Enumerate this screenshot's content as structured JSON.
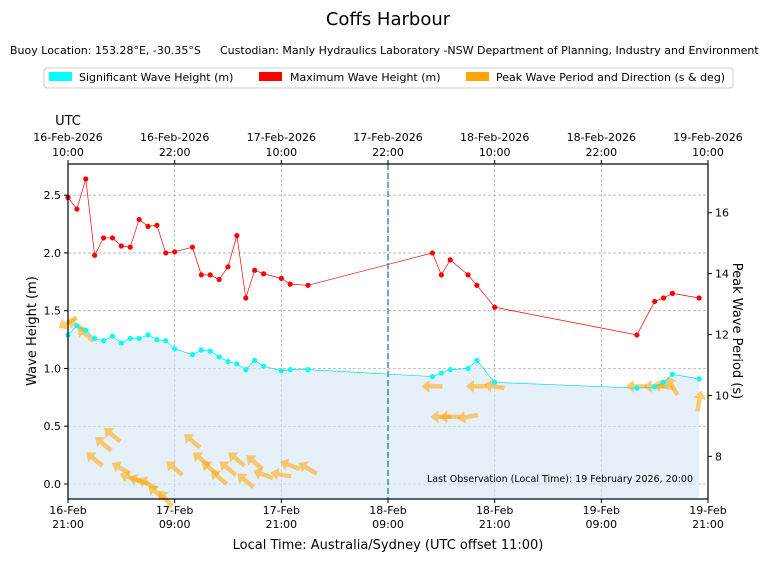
{
  "chart_data": {
    "type": "line",
    "title": "Coffs Harbour",
    "subtitle_location": "Buoy Location: 153.28°E, -30.35°S",
    "subtitle_custodian": "Custodian: Manly Hydraulics Laboratory -NSW Department of Planning, Industry and Environment",
    "legend": [
      {
        "label": "Significant Wave Height (m)",
        "color": "#00ffff"
      },
      {
        "label": "Maximum Wave Height (m)",
        "color": "#ff0000"
      },
      {
        "label": "Peak Wave Period and Direction (s & deg)",
        "color": "#ffa500"
      }
    ],
    "xlabel": "Local Time: Australia/Sydney (UTC offset 11:00)",
    "ylabel": "Wave Height (m)",
    "ylabel_right": "Peak Wave Period (s)",
    "utc_label": "UTC",
    "x_unit": "hours since 16-Feb 21:00 local",
    "xlim": [
      0,
      72
    ],
    "ylim": [
      -0.13,
      2.77
    ],
    "ylim_right": [
      6.6,
      17.6
    ],
    "yticks": [
      0.0,
      0.5,
      1.0,
      1.5,
      2.0,
      2.5
    ],
    "yticks_right": [
      8,
      10,
      12,
      14,
      16
    ],
    "bottom_ticks": [
      {
        "x": 0,
        "l1": "16-Feb",
        "l2": "21:00"
      },
      {
        "x": 12,
        "l1": "17-Feb",
        "l2": "09:00"
      },
      {
        "x": 24,
        "l1": "17-Feb",
        "l2": "21:00"
      },
      {
        "x": 36,
        "l1": "18-Feb",
        "l2": "09:00"
      },
      {
        "x": 48,
        "l1": "18-Feb",
        "l2": "21:00"
      },
      {
        "x": 60,
        "l1": "19-Feb",
        "l2": "09:00"
      },
      {
        "x": 72,
        "l1": "19-Feb",
        "l2": "21:00"
      }
    ],
    "top_ticks": [
      {
        "x": 0,
        "l1": "16-Feb-2026",
        "l2": "10:00"
      },
      {
        "x": 12,
        "l1": "16-Feb-2026",
        "l2": "22:00"
      },
      {
        "x": 24,
        "l1": "17-Feb-2026",
        "l2": "10:00"
      },
      {
        "x": 36,
        "l1": "17-Feb-2026",
        "l2": "22:00"
      },
      {
        "x": 48,
        "l1": "18-Feb-2026",
        "l2": "10:00"
      },
      {
        "x": 60,
        "l1": "18-Feb-2026",
        "l2": "22:00"
      },
      {
        "x": 72,
        "l1": "19-Feb-2026",
        "l2": "10:00"
      }
    ],
    "divider_x": 36,
    "last_observation": "Last Observation (Local Time): 19 February 2026, 20:00",
    "significant_wave_height": {
      "x": [
        0,
        1,
        2,
        3,
        4,
        5,
        6,
        7,
        8,
        9,
        10,
        11,
        12,
        14,
        15,
        16,
        17,
        18,
        19,
        20,
        21,
        22,
        24,
        25,
        27,
        41,
        42,
        43,
        45,
        46,
        48,
        64,
        66,
        67,
        68,
        71
      ],
      "y": [
        1.29,
        1.37,
        1.33,
        1.26,
        1.24,
        1.28,
        1.22,
        1.26,
        1.26,
        1.29,
        1.25,
        1.24,
        1.17,
        1.12,
        1.16,
        1.15,
        1.1,
        1.06,
        1.04,
        0.99,
        1.07,
        1.02,
        0.98,
        0.99,
        0.99,
        0.93,
        0.96,
        0.99,
        1.0,
        1.07,
        0.88,
        0.83,
        0.84,
        0.88,
        0.95,
        0.91
      ]
    },
    "maximum_wave_height": {
      "x": [
        0,
        1,
        2,
        3,
        4,
        5,
        6,
        7,
        8,
        9,
        10,
        11,
        12,
        14,
        15,
        16,
        17,
        18,
        19,
        20,
        21,
        22,
        24,
        25,
        27,
        41,
        42,
        43,
        45,
        46,
        48,
        64,
        66,
        67,
        68,
        71
      ],
      "y": [
        2.48,
        2.38,
        2.64,
        1.98,
        2.13,
        2.13,
        2.06,
        2.05,
        2.29,
        2.23,
        2.24,
        2.0,
        2.01,
        2.05,
        1.81,
        1.81,
        1.77,
        1.88,
        2.15,
        1.61,
        1.85,
        1.82,
        1.78,
        1.73,
        1.72,
        2.0,
        1.81,
        1.94,
        1.81,
        1.72,
        1.53,
        1.29,
        1.58,
        1.61,
        1.65,
        1.61
      ]
    },
    "peak_wave_period_direction": {
      "x": [
        0,
        1,
        2,
        3,
        4,
        5,
        6,
        7,
        8,
        9,
        10,
        11,
        12,
        14,
        15,
        16,
        17,
        18,
        19,
        20,
        21,
        22,
        24,
        25,
        27,
        41,
        42,
        43,
        45,
        46,
        48,
        64,
        66,
        67,
        68,
        71
      ],
      "period_s": [
        12.4,
        12.3,
        12.0,
        7.9,
        8.4,
        8.7,
        7.6,
        7.3,
        7.2,
        7.1,
        6.8,
        6.6,
        7.6,
        8.5,
        7.9,
        7.6,
        7.3,
        7.6,
        7.9,
        7.2,
        7.8,
        7.4,
        7.4,
        7.7,
        7.6,
        10.3,
        9.3,
        9.3,
        9.3,
        10.3,
        10.3,
        10.3,
        10.3,
        10.3,
        10.3,
        9.8
      ],
      "direction_deg": [
        60,
        120,
        130,
        130,
        130,
        130,
        120,
        110,
        110,
        120,
        130,
        140,
        130,
        130,
        130,
        130,
        130,
        130,
        130,
        130,
        130,
        110,
        100,
        110,
        120,
        90,
        90,
        90,
        80,
        90,
        100,
        90,
        90,
        100,
        150,
        190
      ]
    }
  }
}
